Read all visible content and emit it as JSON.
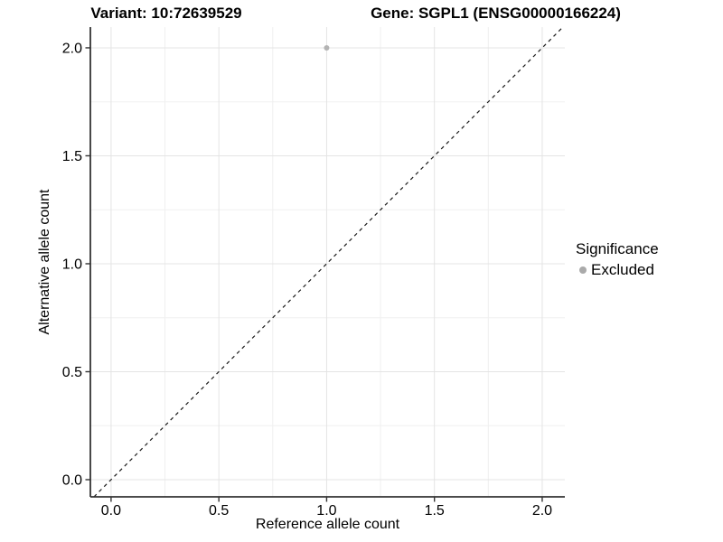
{
  "chart_data": {
    "type": "scatter",
    "title_left": "Variant: 10:72639529",
    "title_right": "Gene: SGPL1 (ENSG00000166224)",
    "xlabel": "Reference allele count",
    "ylabel": "Alternative allele count",
    "xlim": [
      -0.096,
      2.105
    ],
    "ylim": [
      -0.0795,
      2.096
    ],
    "xticks": [
      0,
      0.5,
      1,
      1.5,
      2
    ],
    "xtick_labels": [
      "0.0",
      "0.5",
      "1.0",
      "1.5",
      "2.0"
    ],
    "yticks": [
      0,
      0.5,
      1,
      1.5,
      2
    ],
    "ytick_labels": [
      "0.0",
      "0.5",
      "1.0",
      "1.5",
      "2.0"
    ],
    "grid": true,
    "points": [
      {
        "x": 1.0,
        "y": 2.0,
        "significance": "Excluded",
        "color": "#b3b3b3",
        "radius": 3
      }
    ],
    "abline": {
      "slope": 1,
      "intercept": 0,
      "style": "dashed",
      "color": "#1a1a1a"
    },
    "legend": {
      "title": "Significance",
      "position": "right",
      "items": [
        {
          "label": "Excluded",
          "color": "#aaaaaa"
        }
      ]
    },
    "colors": {
      "grid_major": "#e4e4e4",
      "grid_minor": "#f0f0f0",
      "axis_line": "#333333",
      "tick_mark": "#333333",
      "panel_background": "#ffffff"
    }
  }
}
